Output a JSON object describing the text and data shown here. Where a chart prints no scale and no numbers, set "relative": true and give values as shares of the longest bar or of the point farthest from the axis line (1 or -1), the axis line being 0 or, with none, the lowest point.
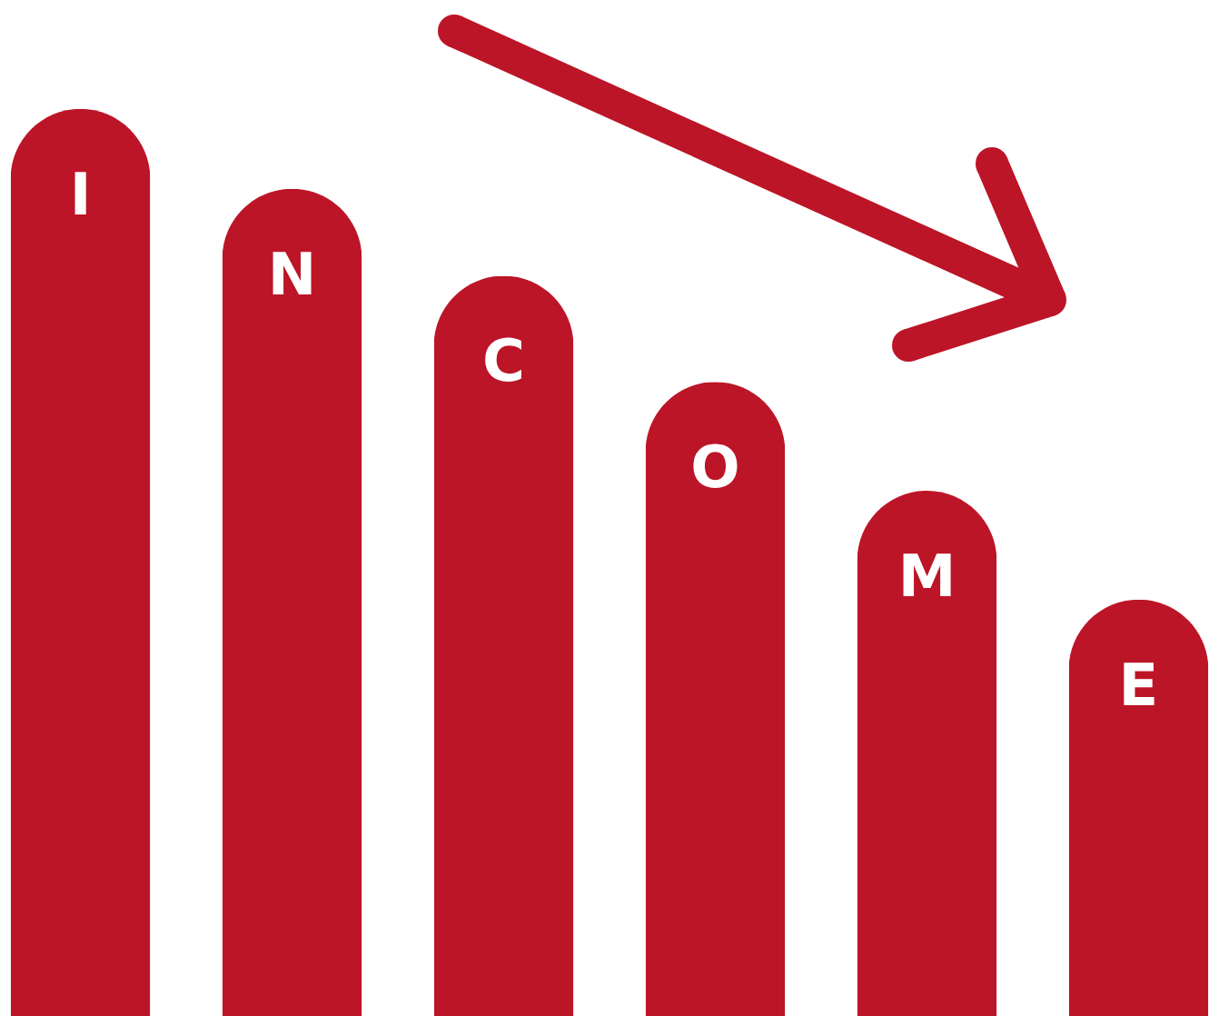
{
  "chart_data": {
    "type": "bar",
    "relative": true,
    "categories": [
      "I",
      "N",
      "C",
      "O",
      "M",
      "E"
    ],
    "values": [
      1,
      0.912,
      0.816,
      0.699,
      0.579,
      0.459
    ],
    "color": "#bc1527"
  }
}
